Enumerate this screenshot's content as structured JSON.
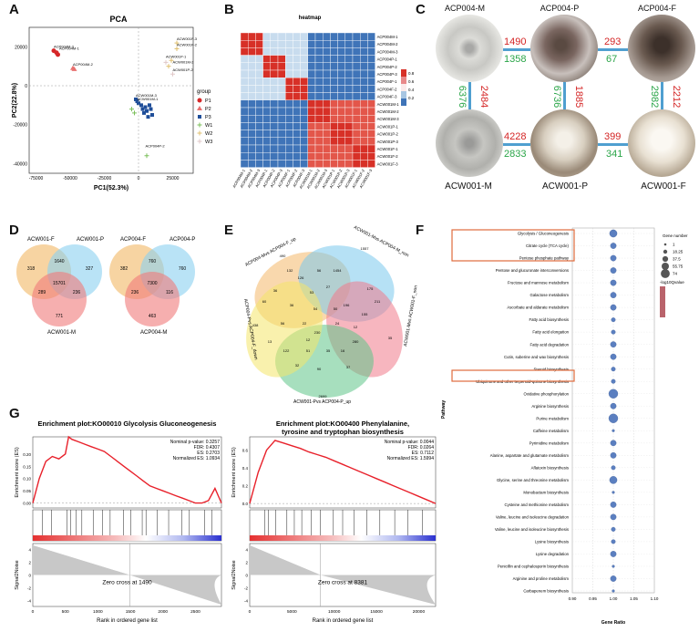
{
  "panels": {
    "A": "A",
    "B": "B",
    "C": "C",
    "D": "D",
    "E": "E",
    "F": "F",
    "G": "G"
  },
  "pca": {
    "title": "PCA",
    "xlabel": "PC1(52.3%)",
    "ylabel": "PC2(22.8%)",
    "xticks": [
      "-75000",
      "-50000",
      "-25000",
      "0",
      "25000"
    ],
    "yticks": [
      "20000",
      "0",
      "-20000",
      "-40000"
    ],
    "legend_title": "group",
    "legend": [
      {
        "label": "P1",
        "color": "#d62728",
        "shape": "circle"
      },
      {
        "label": "P2",
        "color": "#e8706f",
        "shape": "triangle"
      },
      {
        "label": "P3",
        "color": "#1f4e99",
        "shape": "square"
      },
      {
        "label": "W1",
        "color": "#7bbf5a",
        "shape": "cross"
      },
      {
        "label": "W2",
        "color": "#e0c070",
        "shape": "x"
      },
      {
        "label": "W3",
        "color": "#e0c8c8",
        "shape": "asterisk"
      }
    ],
    "labels": [
      {
        "text": "ACP004M-3",
        "x": -62000,
        "y": 18000
      },
      {
        "text": "ACP004M-1",
        "x": -58000,
        "y": 17000
      },
      {
        "text": "ACP004M-2",
        "x": -48000,
        "y": 9000
      },
      {
        "text": "ACW001F-3",
        "x": 28000,
        "y": 22000
      },
      {
        "text": "ACW001F-2",
        "x": 28000,
        "y": 19000
      },
      {
        "text": "ACW001P-1",
        "x": 20000,
        "y": 13000
      },
      {
        "text": "ACW001M-2",
        "x": 25000,
        "y": 10000
      },
      {
        "text": "ACW001P-2",
        "x": 25000,
        "y": 6000
      },
      {
        "text": "ACW001M-3",
        "x": -2000,
        "y": -7000
      },
      {
        "text": "ACW001M-1",
        "x": -1000,
        "y": -9000
      },
      {
        "text": "ACP004P-2",
        "x": 5000,
        "y": -33000
      }
    ]
  },
  "heatmap": {
    "title": "heatmap",
    "samples": [
      "ACP004M-1",
      "ACP004M-2",
      "ACP004M-3",
      "ACP004P-1",
      "ACP004P-2",
      "ACP004P-3",
      "ACP004F-1",
      "ACP004F-2",
      "ACP004F-3",
      "ACW001M-1",
      "ACW001M-2",
      "ACW001M-3",
      "ACW001P-1",
      "ACW001P-2",
      "ACW001P-3",
      "ACW001F-1",
      "ACW001F-2",
      "ACW001F-3"
    ],
    "scale": [
      "0.8",
      "0.6",
      "0.4",
      "0.2"
    ]
  },
  "photos": {
    "top": [
      {
        "label": "ACP004-M"
      },
      {
        "label": "ACP004-P"
      },
      {
        "label": "ACP004-F"
      }
    ],
    "bottom": [
      {
        "label": "ACW001-M"
      },
      {
        "label": "ACW001-P"
      },
      {
        "label": "ACW001-F"
      }
    ],
    "h_top": [
      {
        "up": "1490",
        "down": "1358"
      },
      {
        "up": "293",
        "down": "67"
      }
    ],
    "h_bottom": [
      {
        "up": "4228",
        "down": "2833"
      },
      {
        "up": "399",
        "down": "341"
      }
    ],
    "v": [
      {
        "up": "2484",
        "down": "6376"
      },
      {
        "up": "1885",
        "down": "6736"
      },
      {
        "up": "2212",
        "down": "2982"
      }
    ]
  },
  "venn_d": [
    {
      "labels": {
        "tl": "ACW001-F",
        "tr": "ACW001-P",
        "b": "ACW001-M"
      },
      "values": {
        "a": "318",
        "b": "327",
        "c": "771",
        "ab": "1640",
        "ac": "289",
        "bc": "236",
        "abc": "15701"
      }
    },
    {
      "labels": {
        "tl": "ACP004-F",
        "tr": "ACP004-P",
        "b": "ACP004-M"
      },
      "values": {
        "a": "382",
        "b": "760",
        "c": "463",
        "ab": "760",
        "ac": "236",
        "bc": "116",
        "abc": "7300"
      }
    }
  ],
  "venn_e": {
    "sets": [
      "ACP004-Mvs ACP004-F_up",
      "ACW001-Mvs ACP004-M_non",
      "ACW001-Mvs ACW001-F_non",
      "ACW001-Pvs ACP004-P_up",
      "ACP004-Pvs ACP004-F_down"
    ],
    "values": [
      "490",
      "1557",
      "35",
      "2699",
      "438",
      "1454",
      "53",
      "126",
      "27",
      "196",
      "36",
      "54",
      "24",
      "22",
      "280",
      "35",
      "51",
      "122",
      "155",
      "175",
      "60",
      "36",
      "132",
      "56",
      "16",
      "90",
      "32",
      "37",
      "211",
      "13",
      "230",
      "50",
      "56",
      "12",
      "12"
    ]
  },
  "kegg": {
    "xlabel": "Gene Ratio",
    "ylabel": "Pathway",
    "xticks": [
      "0.90",
      "0.95",
      "1.00",
      "1.05",
      "1.10"
    ],
    "legend_title": "Gene number",
    "sizes": [
      {
        "label": "1",
        "r": 1
      },
      {
        "label": "18.25",
        "r": 2
      },
      {
        "label": "37.5",
        "r": 3
      },
      {
        "label": "55.75",
        "r": 4
      },
      {
        "label": "74",
        "r": 5
      }
    ],
    "color_label": "-log10Qvalue",
    "pathways": [
      {
        "name": "Glycolysis / Gluconeogenesis",
        "ratio": 1.0,
        "size": 4
      },
      {
        "name": "Citrate cycle (TCA cycle)",
        "ratio": 1.0,
        "size": 3
      },
      {
        "name": "Pentose phosphate pathway",
        "ratio": 1.0,
        "size": 3
      },
      {
        "name": "Pentose and glucuronate interconversions",
        "ratio": 1.0,
        "size": 3
      },
      {
        "name": "Fructose and mannose metabolism",
        "ratio": 1.0,
        "size": 3
      },
      {
        "name": "Galactose metabolism",
        "ratio": 1.0,
        "size": 3
      },
      {
        "name": "Ascorbate and aldarate metabolism",
        "ratio": 1.0,
        "size": 3
      },
      {
        "name": "Fatty acid biosynthesis",
        "ratio": 1.0,
        "size": 2
      },
      {
        "name": "Fatty acid elongation",
        "ratio": 1.0,
        "size": 2
      },
      {
        "name": "Fatty acid degradation",
        "ratio": 1.0,
        "size": 3
      },
      {
        "name": "Cutin, suberine and wax biosynthesis",
        "ratio": 1.0,
        "size": 3
      },
      {
        "name": "Steroid biosynthesis",
        "ratio": 1.0,
        "size": 2
      },
      {
        "name": "Ubiquinone and other terpenoid-quinone biosynthesis",
        "ratio": 1.0,
        "size": 2
      },
      {
        "name": "Oxidative phosphorylation",
        "ratio": 1.0,
        "size": 5
      },
      {
        "name": "Arginine biosynthesis",
        "ratio": 1.0,
        "size": 3
      },
      {
        "name": "Purine metabolism",
        "ratio": 1.0,
        "size": 5
      },
      {
        "name": "Caffeine metabolism",
        "ratio": 1.0,
        "size": 1
      },
      {
        "name": "Pyrimidine metabolism",
        "ratio": 1.0,
        "size": 3
      },
      {
        "name": "Alanine, aspartate and glutamate metabolism",
        "ratio": 1.0,
        "size": 3
      },
      {
        "name": "Aflatoxin biosynthesis",
        "ratio": 1.0,
        "size": 2
      },
      {
        "name": "Glycine, serine and threonine metabolism",
        "ratio": 1.0,
        "size": 4
      },
      {
        "name": "Monobactam biosynthesis",
        "ratio": 1.0,
        "size": 1
      },
      {
        "name": "Cysteine and methionine metabolism",
        "ratio": 1.0,
        "size": 3
      },
      {
        "name": "Valine, leucine and isoleucine degradation",
        "ratio": 1.0,
        "size": 3
      },
      {
        "name": "Valine, leucine and isoleucine biosynthesis",
        "ratio": 1.0,
        "size": 2
      },
      {
        "name": "Lysine biosynthesis",
        "ratio": 1.0,
        "size": 2
      },
      {
        "name": "Lysine degradation",
        "ratio": 1.0,
        "size": 3
      },
      {
        "name": "Penicillin and cephalosporin biosynthesis",
        "ratio": 1.0,
        "size": 1
      },
      {
        "name": "Arginine and proline metabolism",
        "ratio": 1.0,
        "size": 3
      },
      {
        "name": "Carbapenem biosynthesis",
        "ratio": 1.0,
        "size": 1
      }
    ]
  },
  "gsea": [
    {
      "title": "Enrichment plot:KO00010 Glycolysis  Gluconeogenesis",
      "stats": [
        "Nominal p-value: 0.3257",
        "FDR: 0.4307",
        "ES: 0.2703",
        "Normalized ES: 1.0934"
      ],
      "zero_cross": "Zero cross at 1490",
      "xticks": [
        "0",
        "500",
        "1000",
        "1500",
        "2000",
        "2500"
      ],
      "es_yticks": [
        "0.20",
        "0.15",
        "0.10",
        "0.05",
        "0.00"
      ],
      "noise_yticks": [
        "4",
        "2",
        "0",
        "-2",
        "-4"
      ],
      "xlabel": "Rank in ordered gene list"
    },
    {
      "title": "Enrichment plot:KO00400 Phenylalanine,\ntyrosine and tryptophan biosynthesis",
      "stats": [
        "Nominal p-value: 0.0044",
        "FDR: 0.0264",
        "ES: 0.7112",
        "Normalized ES: 1.5994"
      ],
      "zero_cross": "Zero cross at 8381",
      "xticks": [
        "0",
        "5000",
        "10000",
        "15000",
        "20000"
      ],
      "es_yticks": [
        "0.6",
        "0.4",
        "0.2",
        "0.0"
      ],
      "noise_yticks": [
        "4",
        "2",
        "0",
        "-2",
        "-4"
      ],
      "xlabel": "Rank in ordered gene list"
    }
  ],
  "gsea_labels": {
    "es": "Enrichment score (ES)",
    "noise": "Signal2Noise"
  },
  "chart_data": [
    {
      "type": "scatter",
      "title": "PCA",
      "xlabel": "PC1(52.3%)",
      "ylabel": "PC2(22.8%)",
      "xlim": [
        -80000,
        40000
      ],
      "ylim": [
        -45000,
        30000
      ],
      "series": [
        {
          "name": "P1",
          "points": [
            [
              -62000,
              18000
            ],
            [
              -60000,
              17000
            ],
            [
              -59000,
              16000
            ]
          ]
        },
        {
          "name": "P2",
          "points": [
            [
              -48000,
              9000
            ],
            [
              -47000,
              8500
            ]
          ]
        },
        {
          "name": "P3",
          "points": [
            [
              -2000,
              -7000
            ],
            [
              -1000,
              -8000
            ],
            [
              0,
              -9000
            ],
            [
              2000,
              -10000
            ],
            [
              3000,
              -12000
            ],
            [
              4000,
              -14000
            ],
            [
              5000,
              -11000
            ],
            [
              6000,
              -13000
            ],
            [
              8000,
              -10000
            ],
            [
              9000,
              -12000
            ],
            [
              10000,
              -15000
            ],
            [
              7000,
              -16000
            ]
          ]
        },
        {
          "name": "W1",
          "points": [
            [
              -5000,
              -12000
            ],
            [
              -3000,
              -14000
            ],
            [
              6000,
              -36000
            ]
          ]
        },
        {
          "name": "W2",
          "points": [
            [
              22000,
              10000
            ],
            [
              24000,
              13000
            ],
            [
              28000,
              19000
            ],
            [
              28000,
              22000
            ]
          ]
        },
        {
          "name": "W3",
          "points": [
            [
              20000,
              12000
            ],
            [
              25000,
              6000
            ]
          ]
        }
      ]
    },
    {
      "type": "heatmap",
      "title": "heatmap",
      "scale": [
        0.2,
        0.8
      ]
    },
    {
      "type": "scatter",
      "xlabel": "Gene Ratio",
      "ylabel": "Pathway",
      "xlim": [
        0.9,
        1.1
      ]
    },
    {
      "type": "line",
      "title": "Enrichment plot:KO00010 Glycolysis  Gluconeogenesis",
      "ylabel": "Enrichment score (ES)",
      "xlabel": "Rank in ordered gene list",
      "xlim": [
        0,
        2900
      ],
      "ylim": [
        -0.02,
        0.27
      ],
      "x": [
        0,
        100,
        200,
        300,
        400,
        500,
        550,
        600,
        700,
        800,
        900,
        1000,
        1100,
        1200,
        1300,
        1400,
        1500,
        1600,
        1700,
        1800,
        1900,
        2000,
        2100,
        2200,
        2300,
        2400,
        2500,
        2600,
        2700,
        2800,
        2900
      ],
      "y": [
        0,
        0.1,
        0.17,
        0.19,
        0.18,
        0.2,
        0.27,
        0.26,
        0.25,
        0.24,
        0.23,
        0.22,
        0.21,
        0.19,
        0.17,
        0.15,
        0.13,
        0.11,
        0.09,
        0.07,
        0.06,
        0.05,
        0.04,
        0.03,
        0.02,
        0.01,
        0.0,
        0.0,
        0.01,
        0.06,
        0.0
      ]
    },
    {
      "type": "line",
      "title": "Enrichment plot:KO00400 Phenylalanine, tyrosine and tryptophan biosynthesis",
      "ylabel": "Enrichment score (ES)",
      "xlabel": "Rank in ordered gene list",
      "xlim": [
        0,
        22000
      ],
      "ylim": [
        -0.05,
        0.75
      ],
      "x": [
        0,
        1000,
        2000,
        3000,
        4000,
        5000,
        6000,
        7000,
        8000,
        9000,
        10000,
        11000,
        12000,
        13000,
        14000,
        15000,
        16000,
        17000,
        18000,
        19000,
        20000,
        21000,
        22000
      ],
      "y": [
        0,
        0.35,
        0.6,
        0.71,
        0.68,
        0.65,
        0.62,
        0.58,
        0.55,
        0.52,
        0.48,
        0.44,
        0.4,
        0.36,
        0.32,
        0.28,
        0.24,
        0.2,
        0.16,
        0.12,
        0.08,
        0.04,
        0.0
      ]
    }
  ]
}
